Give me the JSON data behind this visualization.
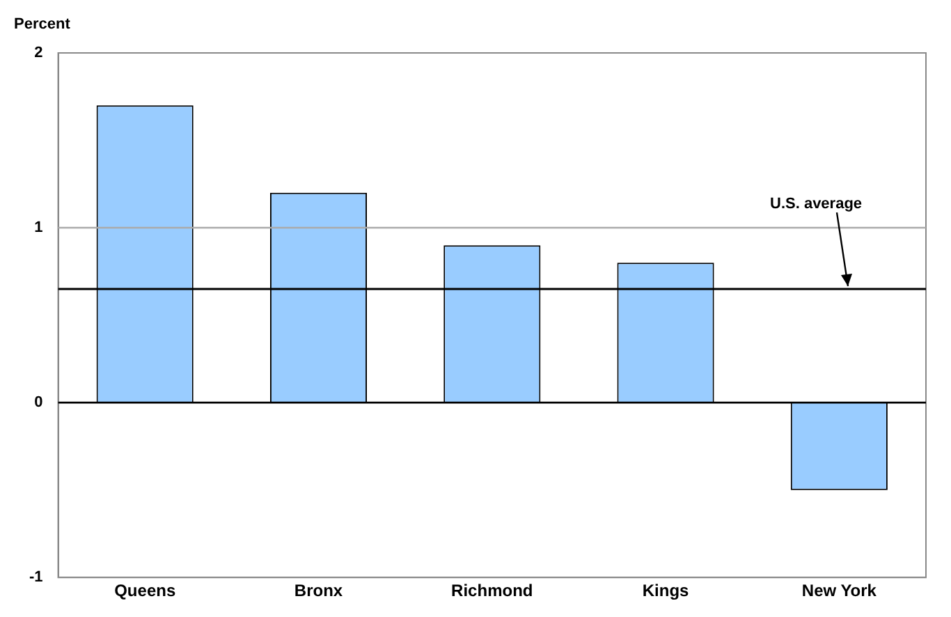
{
  "chart_data": {
    "type": "bar",
    "ylabel": "Percent",
    "categories": [
      "Queens",
      "Bronx",
      "Richmond",
      "Kings",
      "New York"
    ],
    "values": [
      1.7,
      1.2,
      0.9,
      0.8,
      -0.5
    ],
    "color": "#99ccff",
    "ylim": [
      -1,
      2
    ],
    "yticks": [
      -1,
      0,
      1,
      2
    ],
    "ref_lines": [
      {
        "axis": "y",
        "value": 1,
        "color": "#aaaaaa"
      },
      {
        "axis": "y",
        "value": 0,
        "color": "#000000"
      },
      {
        "axis": "y",
        "value": 0.65,
        "label": "U.S. average",
        "color": "#000000"
      }
    ]
  }
}
